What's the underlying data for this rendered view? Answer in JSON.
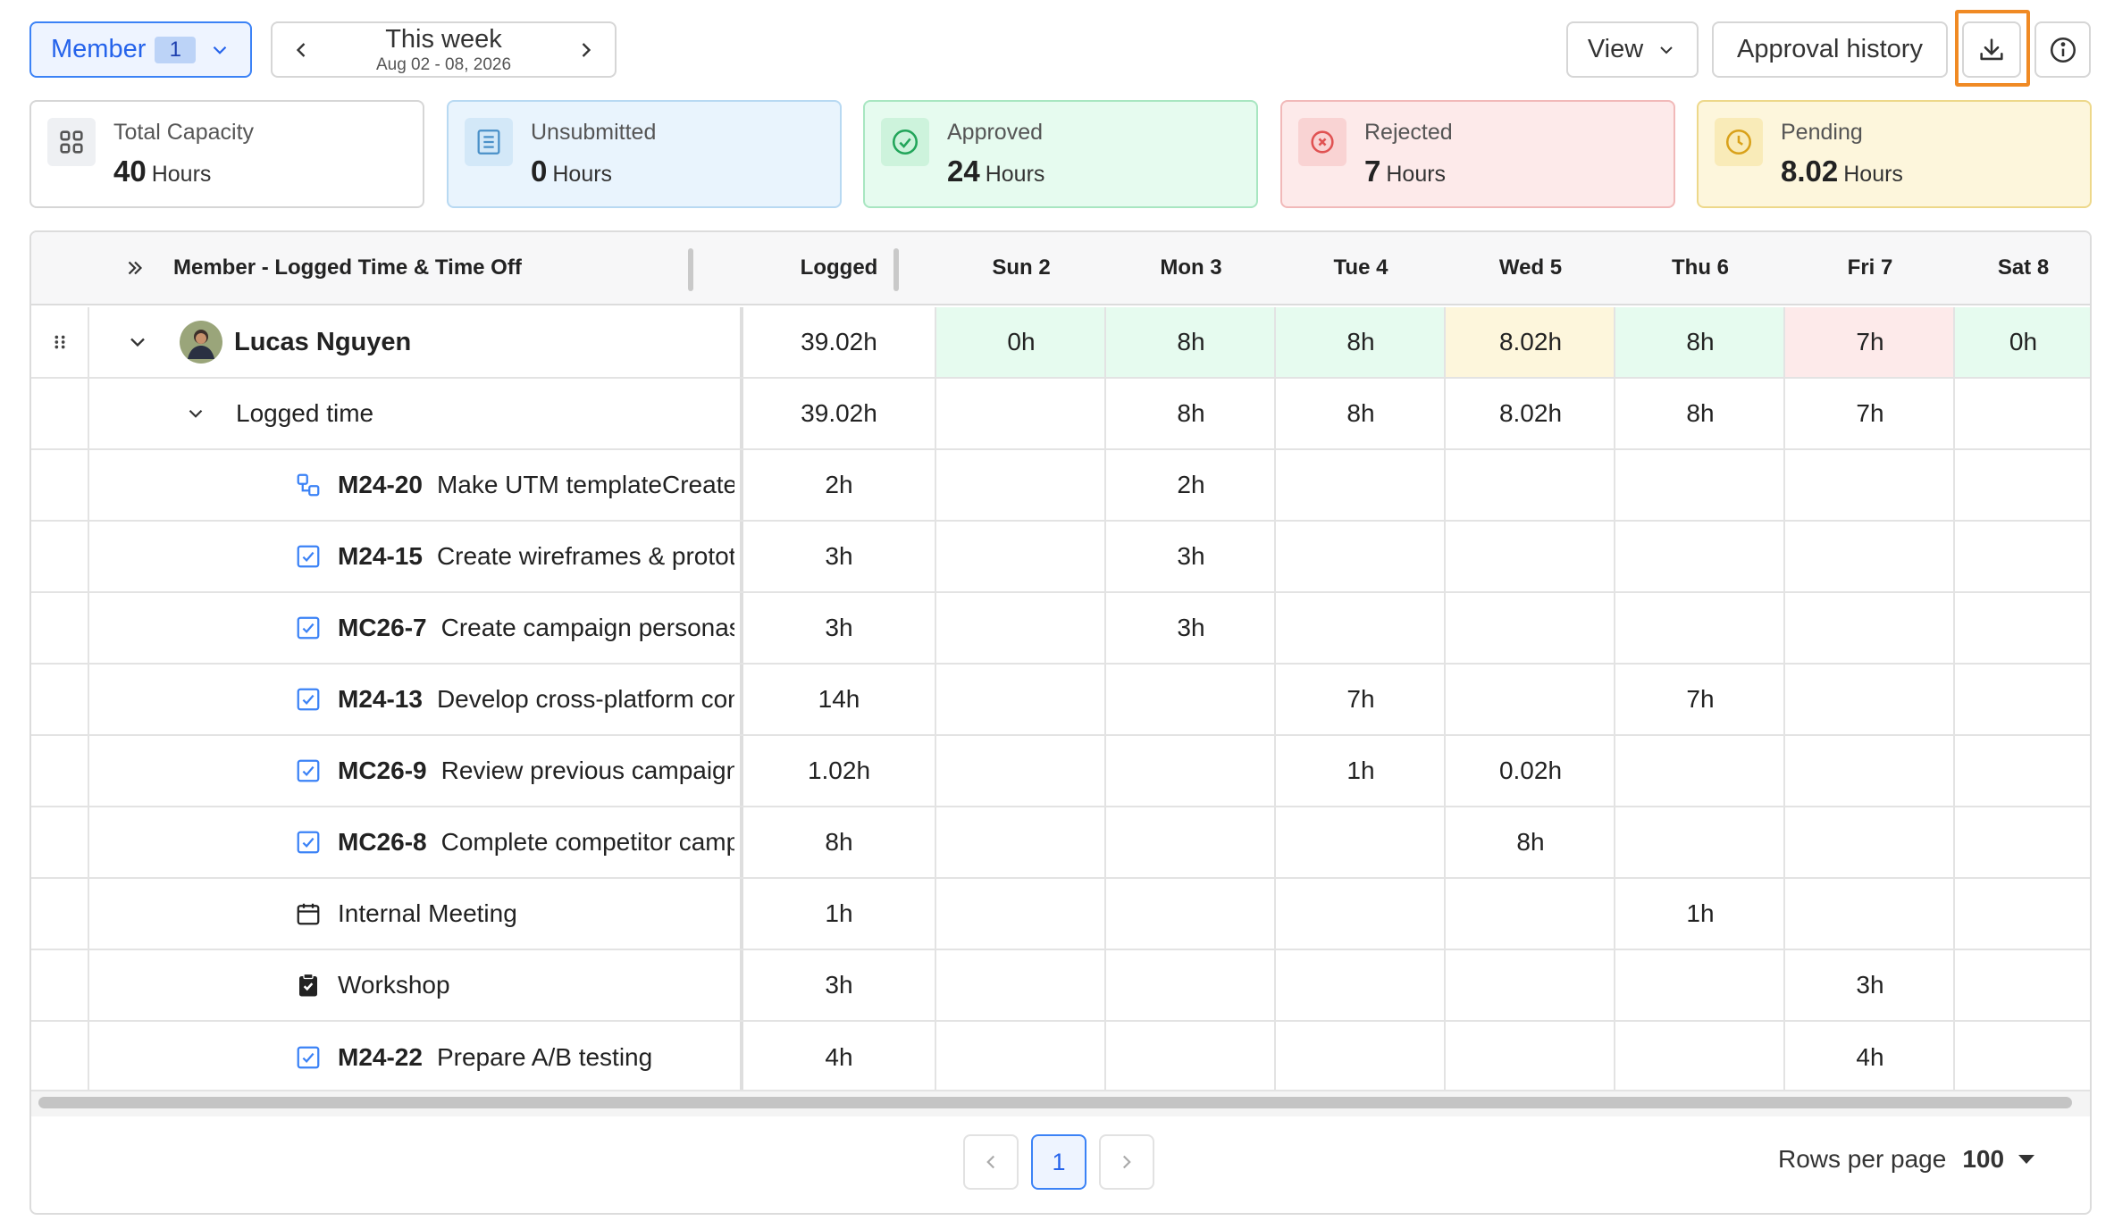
{
  "toolbar": {
    "member_label": "Member",
    "member_count": "1",
    "week_title": "This week",
    "week_range": "Aug 02 - 08, 2026",
    "view_label": "View",
    "approval_history_label": "Approval history"
  },
  "cards": [
    {
      "label": "Total Capacity",
      "value": "40",
      "unit": "Hours",
      "icon": "grid-icon"
    },
    {
      "label": "Unsubmitted",
      "value": "0",
      "unit": "Hours",
      "icon": "list-icon"
    },
    {
      "label": "Approved",
      "value": "24",
      "unit": "Hours",
      "icon": "check-circle-icon"
    },
    {
      "label": "Rejected",
      "value": "7",
      "unit": "Hours",
      "icon": "x-circle-icon"
    },
    {
      "label": "Pending",
      "value": "8.02",
      "unit": "Hours",
      "icon": "clock-icon"
    }
  ],
  "table": {
    "header": {
      "member": "Member - Logged Time & Time Off",
      "logged": "Logged",
      "days": [
        "Sun 2",
        "Mon 3",
        "Tue 4",
        "Wed 5",
        "Thu 6",
        "Fri 7",
        "Sat 8"
      ]
    },
    "member_row": {
      "name": "Lucas Nguyen",
      "logged": "39.02h",
      "days": [
        "0h",
        "8h",
        "8h",
        "8.02h",
        "8h",
        "7h",
        "0h"
      ]
    },
    "group_row": {
      "label": "Logged time",
      "logged": "39.02h",
      "days": [
        "",
        "8h",
        "8h",
        "8.02h",
        "8h",
        "7h",
        ""
      ]
    },
    "tasks": [
      {
        "code": "M24-20",
        "title": "Make UTM templateCreate",
        "icon": "subtask-icon",
        "logged": "2h",
        "days": [
          "",
          "2h",
          "",
          "",
          "",
          "",
          ""
        ]
      },
      {
        "code": "M24-15",
        "title": "Create wireframes & protot",
        "icon": "checkbox-icon",
        "logged": "3h",
        "days": [
          "",
          "3h",
          "",
          "",
          "",
          "",
          ""
        ]
      },
      {
        "code": "MC26-7",
        "title": "Create campaign personas",
        "icon": "checkbox-icon",
        "logged": "3h",
        "days": [
          "",
          "3h",
          "",
          "",
          "",
          "",
          ""
        ]
      },
      {
        "code": "M24-13",
        "title": "Develop cross-platform con",
        "icon": "checkbox-icon",
        "logged": "14h",
        "days": [
          "",
          "",
          "7h",
          "",
          "7h",
          "",
          ""
        ]
      },
      {
        "code": "MC26-9",
        "title": "Review previous campaign",
        "icon": "checkbox-icon",
        "logged": "1.02h",
        "days": [
          "",
          "",
          "1h",
          "0.02h",
          "",
          "",
          ""
        ]
      },
      {
        "code": "MC26-8",
        "title": "Complete competitor camp",
        "icon": "checkbox-icon",
        "logged": "8h",
        "days": [
          "",
          "",
          "",
          "8h",
          "",
          "",
          ""
        ]
      },
      {
        "code": "",
        "title": "Internal Meeting",
        "icon": "calendar-icon",
        "logged": "1h",
        "days": [
          "",
          "",
          "",
          "",
          "1h",
          "",
          ""
        ]
      },
      {
        "code": "",
        "title": "Workshop",
        "icon": "clipboard-icon",
        "logged": "3h",
        "days": [
          "",
          "",
          "",
          "",
          "",
          "3h",
          ""
        ]
      },
      {
        "code": "M24-22",
        "title": "Prepare A/B testing",
        "icon": "checkbox-icon",
        "logged": "4h",
        "days": [
          "",
          "",
          "",
          "",
          "",
          "4h",
          ""
        ]
      }
    ]
  },
  "pagination": {
    "current_page": "1",
    "rows_per_page_label": "Rows per page",
    "rows_per_page": "100"
  },
  "colors": {
    "accent": "#3b82f6",
    "approved_bg": "#e6fbef",
    "pending_bg": "#fdf6dc",
    "rejected_bg": "#fdeaea",
    "highlight_border": "#f08a24"
  }
}
